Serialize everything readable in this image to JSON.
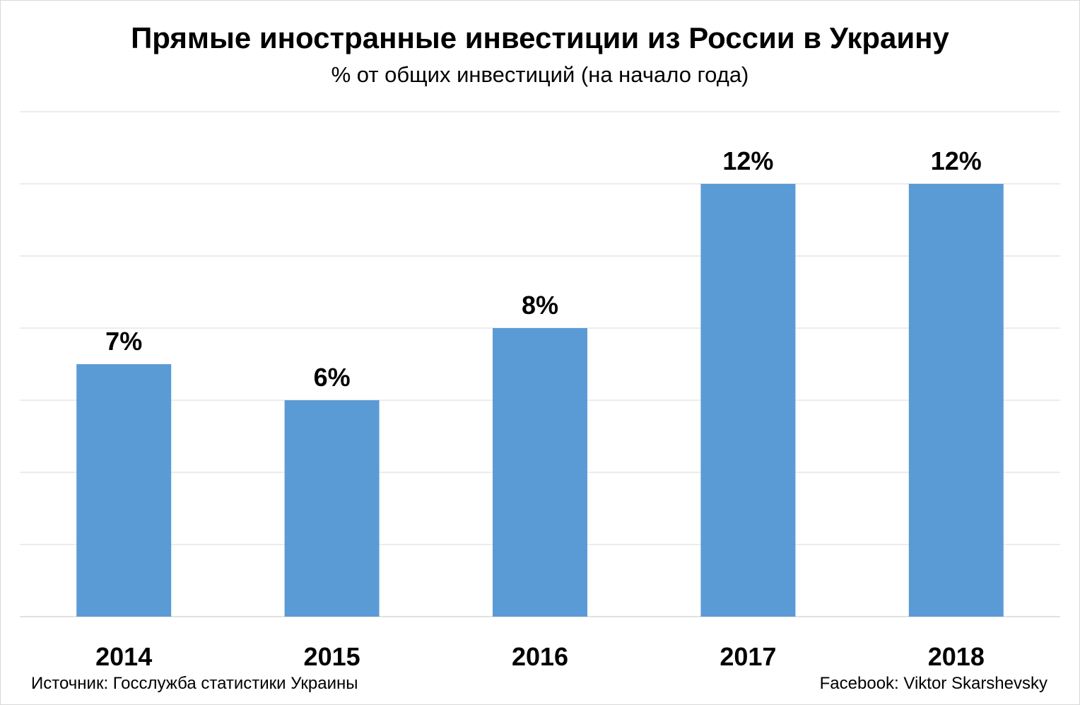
{
  "chart_data": {
    "type": "bar",
    "title": "Прямые иностранные инвестиции из России в Украину",
    "subtitle": "% от общих инвестиций (на начало года)",
    "categories": [
      "2014",
      "2015",
      "2016",
      "2017",
      "2018"
    ],
    "values": [
      7,
      6,
      8,
      12,
      12
    ],
    "data_labels": [
      "7%",
      "6%",
      "8%",
      "12%",
      "12%"
    ],
    "xlabel": "",
    "ylabel": "",
    "ylim": [
      0,
      14
    ],
    "ytick_step": 2,
    "grid": true,
    "bar_color": "#5b9bd5",
    "grid_color": "#d9d9d9"
  },
  "footer": {
    "source": "Источник: Госслужба статистики Украины",
    "credit": "Facebook: Viktor Skarshevsky"
  }
}
